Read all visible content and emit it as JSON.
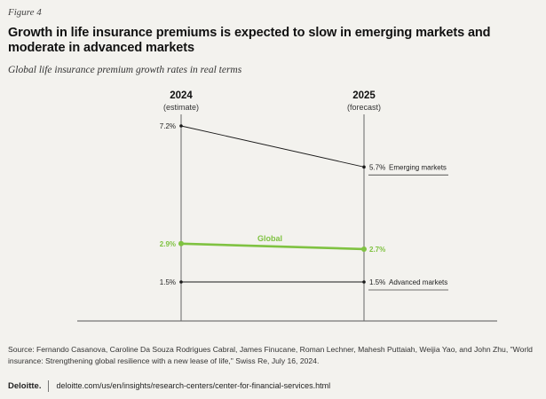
{
  "figure_label": "Figure 4",
  "title": "Growth in life insurance premiums is expected to slow in emerging markets and moderate in advanced markets",
  "subtitle": "Global life insurance premium growth rates in real terms",
  "chart_data": {
    "type": "line",
    "x": [
      "2024",
      "2025"
    ],
    "x_notes": [
      "(estimate)",
      "(forecast)"
    ],
    "series": [
      {
        "name": "Emerging markets",
        "values": [
          7.2,
          5.7
        ],
        "labels": [
          "7.2%",
          "5.7%"
        ],
        "color": "#1a1a1a"
      },
      {
        "name": "Global",
        "values": [
          2.9,
          2.7
        ],
        "labels": [
          "2.9%",
          "2.7%"
        ],
        "color": "#7fc241"
      },
      {
        "name": "Advanced markets",
        "values": [
          1.5,
          1.5
        ],
        "labels": [
          "1.5%",
          "1.5%"
        ],
        "color": "#1a1a1a"
      }
    ],
    "ylim": [
      0,
      7.2
    ],
    "grid": false
  },
  "source": "Source: Fernando Casanova, Caroline Da Souza Rodrigues Cabral, James Finucane, Roman Lechner, Mahesh Puttaiah, Weijia Yao, and John Zhu, \"World insurance: Strengthening global resilience with a new lease of life,\" Swiss Re, July 16, 2024.",
  "footer": {
    "brand": "Deloitte.",
    "url": "deloitte.com/us/en/insights/research-centers/center-for-financial-services.html"
  }
}
